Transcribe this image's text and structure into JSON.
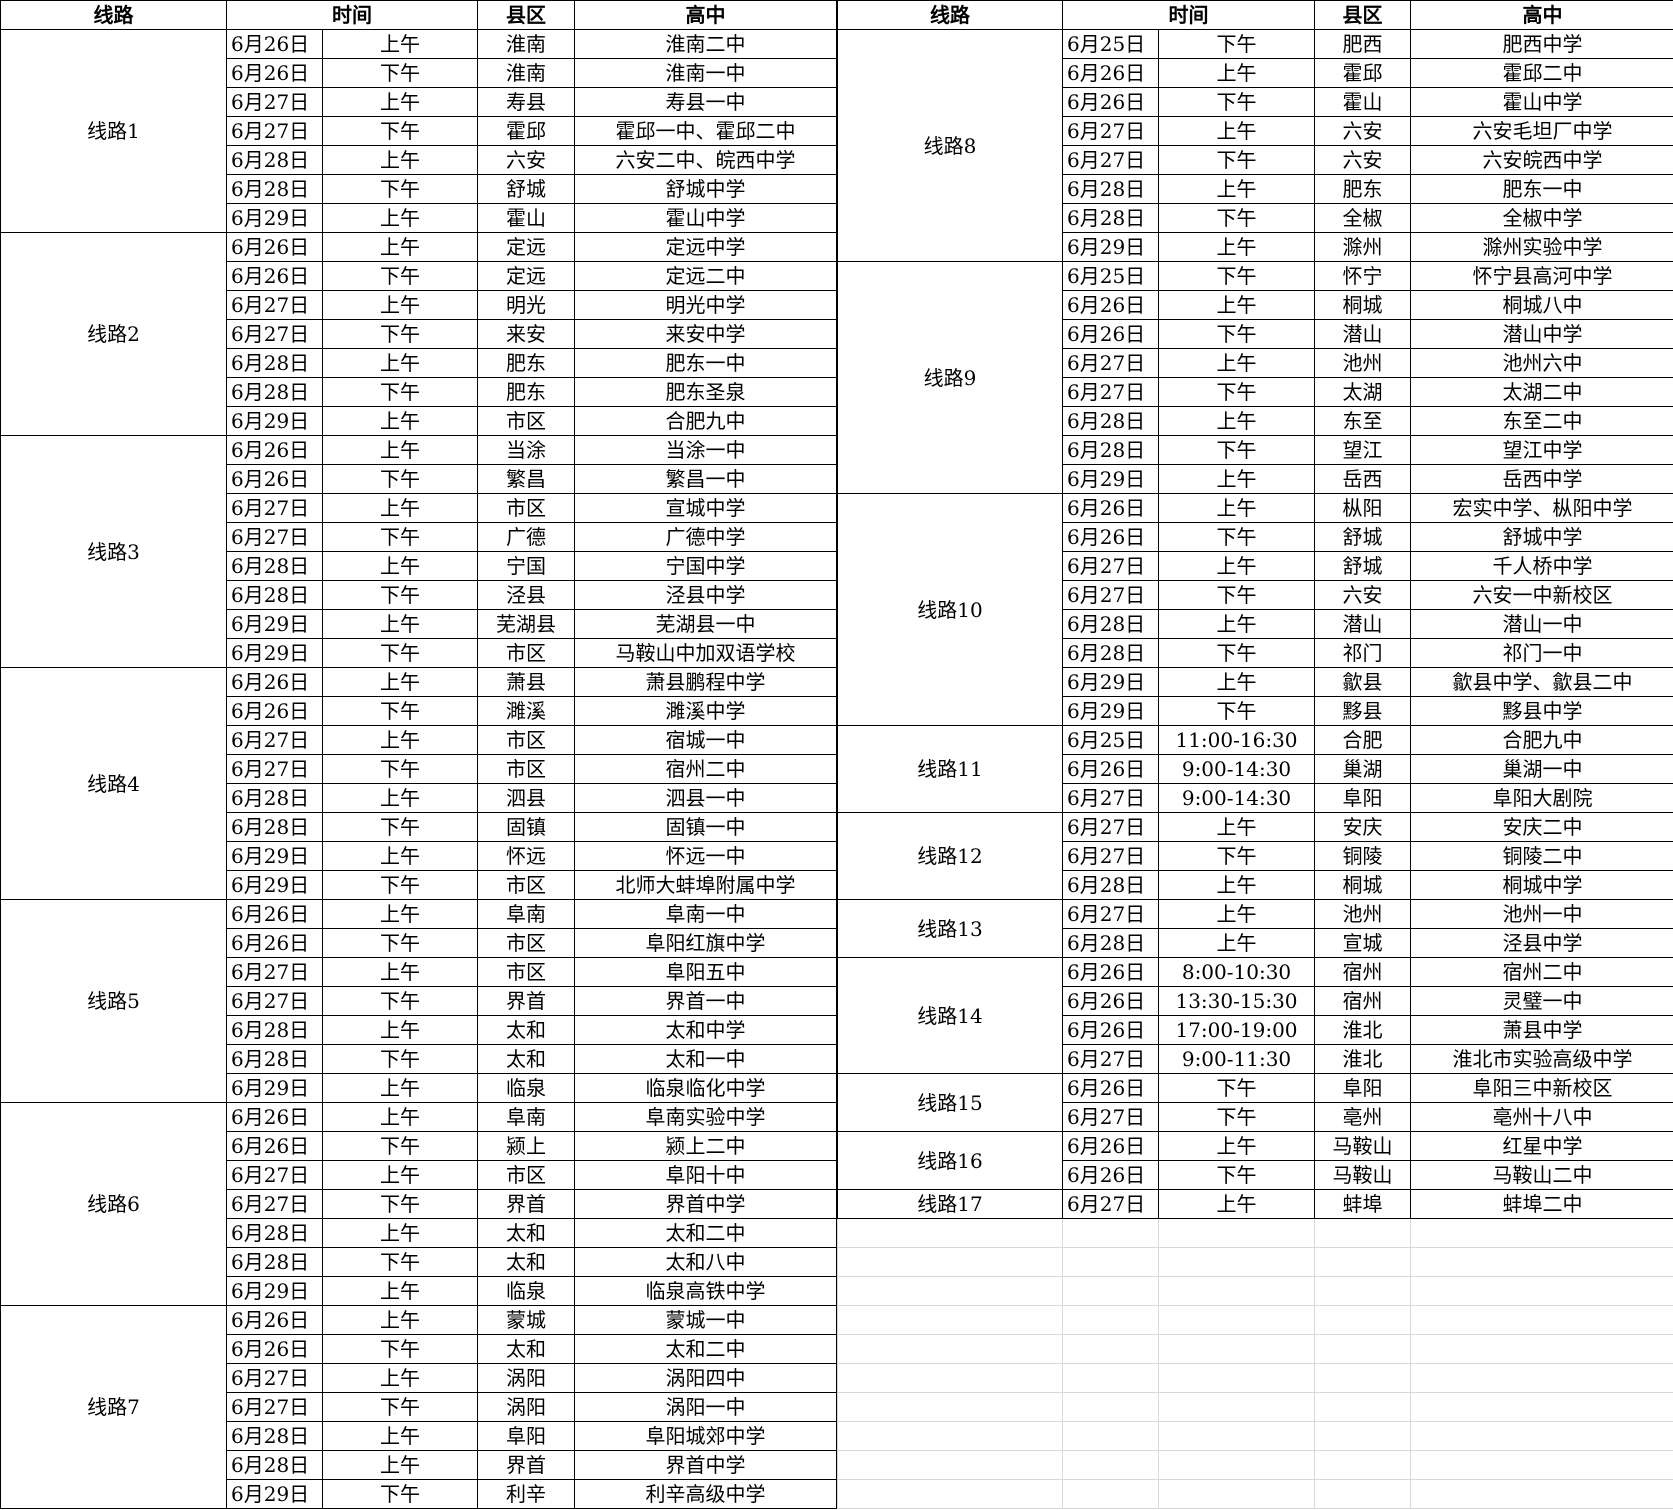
{
  "tables": [
    {
      "header": [
        "线路",
        "时间",
        "县区",
        "高中"
      ],
      "routes": [
        {
          "name": "线路1",
          "rows": [
            [
              "6月26日",
              "上午",
              "淮南",
              "淮南二中"
            ],
            [
              "6月26日",
              "下午",
              "淮南",
              "淮南一中"
            ],
            [
              "6月27日",
              "上午",
              "寿县",
              "寿县一中"
            ],
            [
              "6月27日",
              "下午",
              "霍邱",
              "霍邱一中、霍邱二中"
            ],
            [
              "6月28日",
              "上午",
              "六安",
              "六安二中、皖西中学"
            ],
            [
              "6月28日",
              "下午",
              "舒城",
              "舒城中学"
            ],
            [
              "6月29日",
              "上午",
              "霍山",
              "霍山中学"
            ]
          ]
        },
        {
          "name": "线路2",
          "rows": [
            [
              "6月26日",
              "上午",
              "定远",
              "定远中学"
            ],
            [
              "6月26日",
              "下午",
              "定远",
              "定远二中"
            ],
            [
              "6月27日",
              "上午",
              "明光",
              "明光中学"
            ],
            [
              "6月27日",
              "下午",
              "来安",
              "来安中学"
            ],
            [
              "6月28日",
              "上午",
              "肥东",
              "肥东一中"
            ],
            [
              "6月28日",
              "下午",
              "肥东",
              "肥东圣泉"
            ],
            [
              "6月29日",
              "上午",
              "市区",
              "合肥九中"
            ]
          ]
        },
        {
          "name": "线路3",
          "rows": [
            [
              "6月26日",
              "上午",
              "当涂",
              "当涂一中"
            ],
            [
              "6月26日",
              "下午",
              "繁昌",
              "繁昌一中"
            ],
            [
              "6月27日",
              "上午",
              "市区",
              "宣城中学"
            ],
            [
              "6月27日",
              "下午",
              "广德",
              "广德中学"
            ],
            [
              "6月28日",
              "上午",
              "宁国",
              "宁国中学"
            ],
            [
              "6月28日",
              "下午",
              "泾县",
              "泾县中学"
            ],
            [
              "6月29日",
              "上午",
              "芜湖县",
              "芜湖县一中"
            ],
            [
              "6月29日",
              "下午",
              "市区",
              "马鞍山中加双语学校"
            ]
          ]
        },
        {
          "name": "线路4",
          "rows": [
            [
              "6月26日",
              "上午",
              "萧县",
              "萧县鹏程中学"
            ],
            [
              "6月26日",
              "下午",
              "濉溪",
              "濉溪中学"
            ],
            [
              "6月27日",
              "上午",
              "市区",
              "宿城一中"
            ],
            [
              "6月27日",
              "下午",
              "市区",
              "宿州二中"
            ],
            [
              "6月28日",
              "上午",
              "泗县",
              "泗县一中"
            ],
            [
              "6月28日",
              "下午",
              "固镇",
              "固镇一中"
            ],
            [
              "6月29日",
              "上午",
              "怀远",
              "怀远一中"
            ],
            [
              "6月29日",
              "下午",
              "市区",
              "北师大蚌埠附属中学"
            ]
          ]
        },
        {
          "name": "线路5",
          "rows": [
            [
              "6月26日",
              "上午",
              "阜南",
              "阜南一中"
            ],
            [
              "6月26日",
              "下午",
              "市区",
              "阜阳红旗中学"
            ],
            [
              "6月27日",
              "上午",
              "市区",
              "阜阳五中"
            ],
            [
              "6月27日",
              "下午",
              "界首",
              "界首一中"
            ],
            [
              "6月28日",
              "上午",
              "太和",
              "太和中学"
            ],
            [
              "6月28日",
              "下午",
              "太和",
              "太和一中"
            ],
            [
              "6月29日",
              "上午",
              "临泉",
              "临泉临化中学"
            ]
          ]
        },
        {
          "name": "线路6",
          "rows": [
            [
              "6月26日",
              "上午",
              "阜南",
              "阜南实验中学"
            ],
            [
              "6月26日",
              "下午",
              "颍上",
              "颍上二中"
            ],
            [
              "6月27日",
              "上午",
              "市区",
              "阜阳十中"
            ],
            [
              "6月27日",
              "下午",
              "界首",
              "界首中学"
            ],
            [
              "6月28日",
              "上午",
              "太和",
              "太和二中"
            ],
            [
              "6月28日",
              "下午",
              "太和",
              "太和八中"
            ],
            [
              "6月29日",
              "上午",
              "临泉",
              "临泉高铁中学"
            ]
          ]
        },
        {
          "name": "线路7",
          "rows": [
            [
              "6月26日",
              "上午",
              "蒙城",
              "蒙城一中"
            ],
            [
              "6月26日",
              "下午",
              "太和",
              "太和二中"
            ],
            [
              "6月27日",
              "上午",
              "涡阳",
              "涡阳四中"
            ],
            [
              "6月27日",
              "下午",
              "涡阳",
              "涡阳一中"
            ],
            [
              "6月28日",
              "上午",
              "阜阳",
              "阜阳城郊中学"
            ],
            [
              "6月28日",
              "上午",
              "界首",
              "界首中学"
            ],
            [
              "6月29日",
              "下午",
              "利辛",
              "利辛高级中学"
            ]
          ]
        }
      ]
    },
    {
      "header": [
        "线路",
        "时间",
        "县区",
        "高中"
      ],
      "routes": [
        {
          "name": "线路8",
          "rows": [
            [
              "6月25日",
              "下午",
              "肥西",
              "肥西中学"
            ],
            [
              "6月26日",
              "上午",
              "霍邱",
              "霍邱二中"
            ],
            [
              "6月26日",
              "下午",
              "霍山",
              "霍山中学"
            ],
            [
              "6月27日",
              "上午",
              "六安",
              "六安毛坦厂中学"
            ],
            [
              "6月27日",
              "下午",
              "六安",
              "六安皖西中学"
            ],
            [
              "6月28日",
              "上午",
              "肥东",
              "肥东一中"
            ],
            [
              "6月28日",
              "下午",
              "全椒",
              "全椒中学"
            ],
            [
              "6月29日",
              "上午",
              "滁州",
              "滁州实验中学"
            ]
          ]
        },
        {
          "name": "线路9",
          "rows": [
            [
              "6月25日",
              "下午",
              "怀宁",
              "怀宁县高河中学"
            ],
            [
              "6月26日",
              "上午",
              "桐城",
              "桐城八中"
            ],
            [
              "6月26日",
              "下午",
              "潜山",
              "潜山中学"
            ],
            [
              "6月27日",
              "上午",
              "池州",
              "池州六中"
            ],
            [
              "6月27日",
              "下午",
              "太湖",
              "太湖二中"
            ],
            [
              "6月28日",
              "上午",
              "东至",
              "东至二中"
            ],
            [
              "6月28日",
              "下午",
              "望江",
              "望江中学"
            ],
            [
              "6月29日",
              "上午",
              "岳西",
              "岳西中学"
            ]
          ]
        },
        {
          "name": "线路10",
          "rows": [
            [
              "6月26日",
              "上午",
              "枞阳",
              "宏实中学、枞阳中学"
            ],
            [
              "6月26日",
              "下午",
              "舒城",
              "舒城中学"
            ],
            [
              "6月27日",
              "上午",
              "舒城",
              "千人桥中学"
            ],
            [
              "6月27日",
              "下午",
              "六安",
              "六安一中新校区"
            ],
            [
              "6月28日",
              "上午",
              "潜山",
              "潜山一中"
            ],
            [
              "6月28日",
              "下午",
              "祁门",
              "祁门一中"
            ],
            [
              "6月29日",
              "上午",
              "歙县",
              "歙县中学、歙县二中"
            ],
            [
              "6月29日",
              "下午",
              "黟县",
              "黟县中学"
            ]
          ]
        },
        {
          "name": "线路11",
          "rows": [
            [
              "6月25日",
              "11:00-16:30",
              "合肥",
              "合肥九中"
            ],
            [
              "6月26日",
              "9:00-14:30",
              "巢湖",
              "巢湖一中"
            ],
            [
              "6月27日",
              "9:00-14:30",
              "阜阳",
              "阜阳大剧院"
            ]
          ]
        },
        {
          "name": "线路12",
          "rows": [
            [
              "6月27日",
              "上午",
              "安庆",
              "安庆二中"
            ],
            [
              "6月27日",
              "下午",
              "铜陵",
              "铜陵二中"
            ],
            [
              "6月28日",
              "上午",
              "桐城",
              "桐城中学"
            ]
          ]
        },
        {
          "name": "线路13",
          "rows": [
            [
              "6月27日",
              "上午",
              "池州",
              "池州一中"
            ],
            [
              "6月28日",
              "上午",
              "宣城",
              "泾县中学"
            ]
          ]
        },
        {
          "name": "线路14",
          "rows": [
            [
              "6月26日",
              "8:00-10:30",
              "宿州",
              "宿州二中"
            ],
            [
              "6月26日",
              "13:30-15:30",
              "宿州",
              "灵璧一中"
            ],
            [
              "6月26日",
              "17:00-19:00",
              "淮北",
              "萧县中学"
            ],
            [
              "6月27日",
              "9:00-11:30",
              "淮北",
              "淮北市实验高级中学"
            ]
          ]
        },
        {
          "name": "线路15",
          "rows": [
            [
              "6月26日",
              "下午",
              "阜阳",
              "阜阳三中新校区"
            ],
            [
              "6月27日",
              "下午",
              "亳州",
              "亳州十八中"
            ]
          ]
        },
        {
          "name": "线路16",
          "rows": [
            [
              "6月26日",
              "上午",
              "马鞍山",
              "红星中学"
            ],
            [
              "6月26日",
              "下午",
              "马鞍山",
              "马鞍山二中"
            ]
          ]
        },
        {
          "name": "线路17",
          "rows": [
            [
              "6月27日",
              "上午",
              "蚌埠",
              "蚌埠二中"
            ]
          ]
        }
      ]
    }
  ]
}
